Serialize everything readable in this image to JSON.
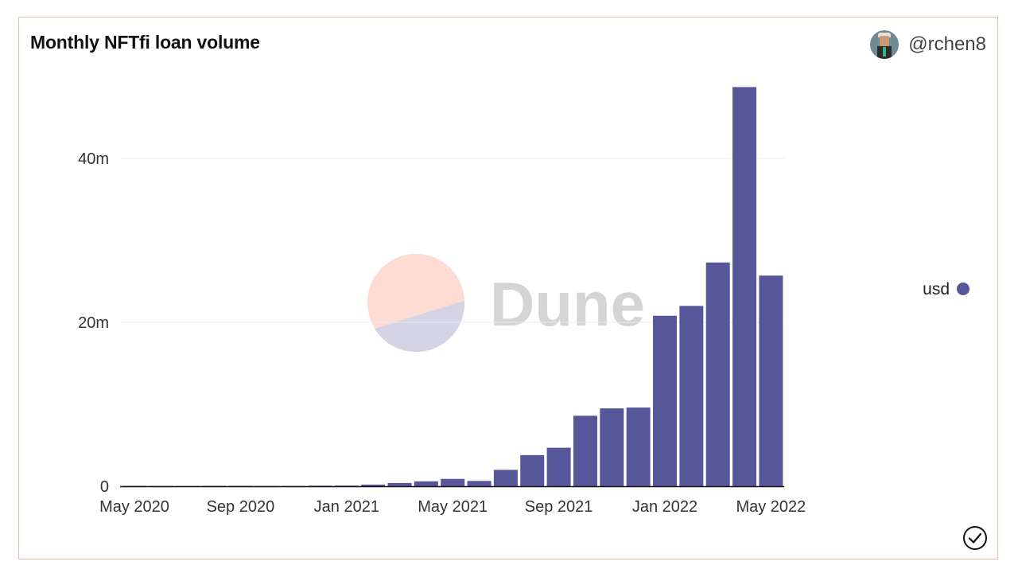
{
  "header": {
    "title": "Monthly NFTfi loan volume",
    "author": "@rchen8"
  },
  "watermark": {
    "text": "Dune",
    "icon": "dune-logo-icon"
  },
  "status_icon": "check-circle-icon",
  "colors": {
    "bar": "#56579a",
    "grid": "#ececec",
    "axis": "#111111",
    "watermark_top": "#fcdcd3",
    "watermark_bottom": "#d5d3e6",
    "watermark_text": "#d4d4d4"
  },
  "chart_data": {
    "type": "bar",
    "title": "Monthly NFTfi loan volume",
    "xlabel": "",
    "ylabel": "",
    "x": [
      "2020-05",
      "2020-06",
      "2020-07",
      "2020-08",
      "2020-09",
      "2020-10",
      "2020-11",
      "2020-12",
      "2021-01",
      "2021-02",
      "2021-03",
      "2021-04",
      "2021-05",
      "2021-06",
      "2021-07",
      "2021-08",
      "2021-09",
      "2021-10",
      "2021-11",
      "2021-12",
      "2022-01",
      "2022-02",
      "2022-03",
      "2022-04",
      "2022-05"
    ],
    "series": [
      {
        "name": "usd",
        "values": [
          50000,
          40000,
          30000,
          50000,
          50000,
          40000,
          40000,
          70000,
          80000,
          200000,
          400000,
          600000,
          900000,
          650000,
          2000000,
          3800000,
          4700000,
          8600000,
          9500000,
          9600000,
          20800000,
          22000000,
          27300000,
          48700000,
          25700000
        ]
      }
    ],
    "x_tick_labels": [
      "May 2020",
      "Sep 2020",
      "Jan 2021",
      "May 2021",
      "Sep 2021",
      "Jan 2022",
      "May 2022"
    ],
    "x_tick_positions": [
      "2020-05",
      "2020-09",
      "2021-01",
      "2021-05",
      "2021-09",
      "2022-01",
      "2022-05"
    ],
    "y_ticks": [
      {
        "value": 0,
        "label": "0"
      },
      {
        "value": 20000000,
        "label": "20m"
      },
      {
        "value": 40000000,
        "label": "40m"
      }
    ],
    "ylim": [
      0,
      50000000
    ],
    "grid": true,
    "legend": {
      "placement": "right",
      "entries": [
        "usd"
      ]
    }
  }
}
